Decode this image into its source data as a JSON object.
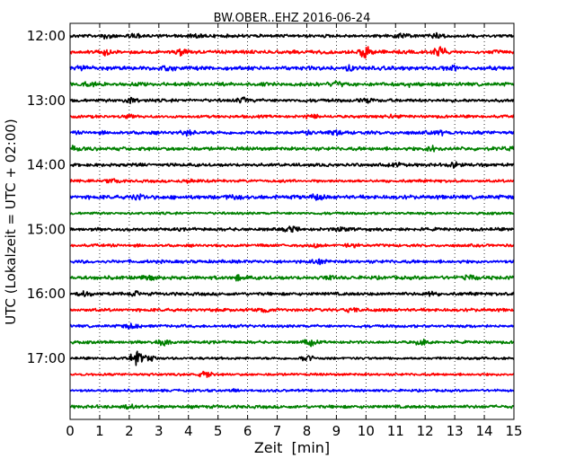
{
  "chart_data": {
    "type": "line",
    "title": "BW.OBER..EHZ 2016-06-24",
    "xlabel": "Zeit  [min]",
    "ylabel": "UTC (Lokalzeit = UTC + 02:00)",
    "xlim": [
      0,
      15
    ],
    "x_ticks": [
      "0",
      "1",
      "2",
      "3",
      "4",
      "5",
      "6",
      "7",
      "8",
      "9",
      "10",
      "11",
      "12",
      "13",
      "14",
      "15"
    ],
    "y_tick_labels": [
      "12:00",
      "13:00",
      "14:00",
      "15:00",
      "16:00",
      "17:00"
    ],
    "grid": "x-dotted",
    "trace_colors": [
      "#000000",
      "#ff0000",
      "#0000ff",
      "#008000"
    ],
    "series": [
      {
        "start": "12:00",
        "amp": 0.45,
        "events": [
          [
            1.3,
            0.6
          ],
          [
            2.3,
            0.5
          ],
          [
            4.3,
            0.5
          ],
          [
            11.2,
            0.7
          ],
          [
            12.4,
            0.6
          ]
        ]
      },
      {
        "start": "12:15",
        "amp": 0.5,
        "events": [
          [
            1.2,
            0.6
          ],
          [
            3.8,
            0.8
          ],
          [
            10.0,
            1.6
          ],
          [
            12.5,
            1.3
          ]
        ]
      },
      {
        "start": "12:30",
        "amp": 0.55,
        "events": [
          [
            0.5,
            0.6
          ],
          [
            3.3,
            0.5
          ],
          [
            9.5,
            0.6
          ],
          [
            12.9,
            0.5
          ]
        ]
      },
      {
        "start": "12:45",
        "amp": 0.5,
        "events": [
          [
            0.6,
            0.5
          ],
          [
            9.0,
            0.6
          ],
          [
            11.5,
            0.5
          ]
        ]
      },
      {
        "start": "13:00",
        "amp": 0.45,
        "events": [
          [
            2.0,
            0.6
          ],
          [
            5.9,
            0.6
          ],
          [
            10.0,
            0.5
          ]
        ]
      },
      {
        "start": "13:15",
        "amp": 0.4,
        "events": [
          [
            2.0,
            0.5
          ],
          [
            8.2,
            0.6
          ],
          [
            10.8,
            0.5
          ]
        ]
      },
      {
        "start": "13:30",
        "amp": 0.5,
        "events": [
          [
            4.0,
            0.5
          ],
          [
            8.0,
            0.6
          ],
          [
            9.0,
            0.5
          ],
          [
            12.5,
            0.5
          ]
        ]
      },
      {
        "start": "13:45",
        "amp": 0.5,
        "events": [
          [
            0.2,
            0.5
          ],
          [
            12.3,
            0.8
          ],
          [
            14.9,
            0.5
          ]
        ]
      },
      {
        "start": "14:00",
        "amp": 0.45,
        "events": [
          [
            2.2,
            0.5
          ],
          [
            11.0,
            0.5
          ],
          [
            13.0,
            0.6
          ]
        ]
      },
      {
        "start": "14:15",
        "amp": 0.4,
        "events": [
          [
            1.5,
            0.5
          ],
          [
            4.0,
            0.4
          ]
        ]
      },
      {
        "start": "14:30",
        "amp": 0.55,
        "events": [
          [
            2.3,
            0.6
          ],
          [
            5.5,
            0.6
          ],
          [
            8.3,
            0.6
          ]
        ]
      },
      {
        "start": "14:45",
        "amp": 0.35,
        "events": []
      },
      {
        "start": "15:00",
        "amp": 0.45,
        "events": [
          [
            7.5,
            0.6
          ],
          [
            9.2,
            0.5
          ]
        ]
      },
      {
        "start": "15:15",
        "amp": 0.4,
        "events": [
          [
            8.3,
            0.5
          ],
          [
            9.5,
            0.5
          ]
        ]
      },
      {
        "start": "15:30",
        "amp": 0.45,
        "events": [
          [
            8.4,
            0.8
          ]
        ]
      },
      {
        "start": "15:45",
        "amp": 0.5,
        "events": [
          [
            2.7,
            0.5
          ],
          [
            5.7,
            0.6
          ],
          [
            8.8,
            0.5
          ],
          [
            13.5,
            0.5
          ]
        ]
      },
      {
        "start": "16:00",
        "amp": 0.45,
        "events": [
          [
            0.5,
            0.5
          ],
          [
            2.2,
            0.5
          ],
          [
            12.2,
            0.5
          ]
        ]
      },
      {
        "start": "16:15",
        "amp": 0.45,
        "events": [
          [
            6.5,
            0.5
          ],
          [
            9.5,
            0.5
          ]
        ]
      },
      {
        "start": "16:30",
        "amp": 0.4,
        "events": [
          [
            2.1,
            0.6
          ],
          [
            5.7,
            0.5
          ]
        ]
      },
      {
        "start": "16:45",
        "amp": 0.4,
        "events": [
          [
            3.2,
            0.8
          ],
          [
            8.1,
            0.8
          ],
          [
            11.9,
            0.8
          ]
        ]
      },
      {
        "start": "17:00",
        "amp": 0.35,
        "events": [
          [
            2.25,
            1.7
          ],
          [
            2.65,
            0.7
          ],
          [
            8.0,
            0.8
          ]
        ]
      },
      {
        "start": "17:15",
        "amp": 0.35,
        "events": [
          [
            4.6,
            0.8
          ]
        ]
      },
      {
        "start": "17:30",
        "amp": 0.35,
        "events": [
          [
            5.5,
            0.4
          ]
        ]
      },
      {
        "start": "17:45",
        "amp": 0.45,
        "events": [
          [
            2.0,
            0.4
          ]
        ]
      }
    ]
  }
}
